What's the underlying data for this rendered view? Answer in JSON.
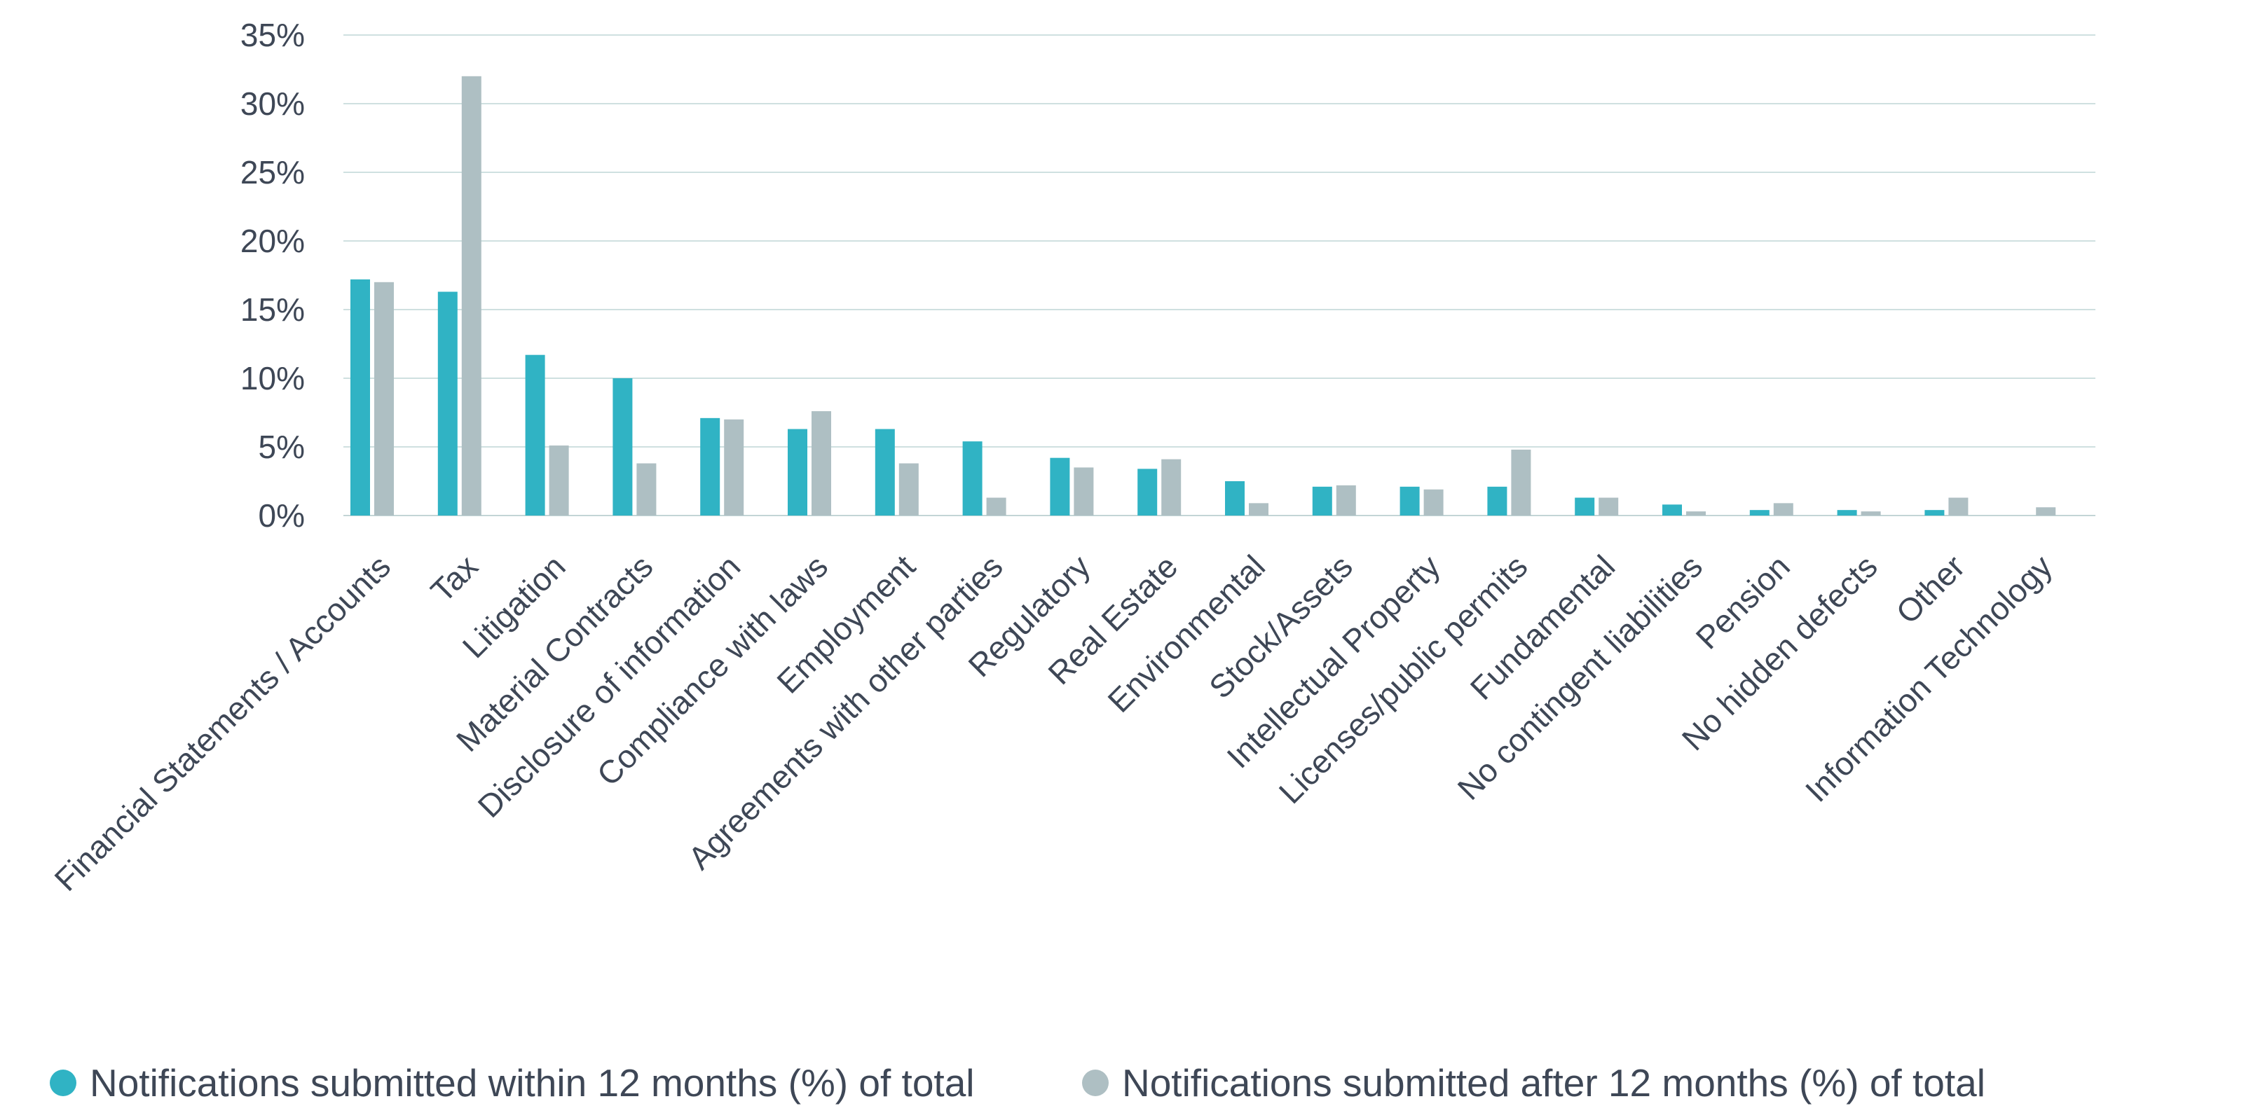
{
  "chart_data": {
    "type": "bar",
    "categories": [
      "Financial Statements / Accounts",
      "Tax",
      "Litigation",
      "Material Contracts",
      "Disclosure of information",
      "Compliance with laws",
      "Employment",
      "Agreements with other parties",
      "Regulatory",
      "Real Estate",
      "Environmental",
      "Stock/Assets",
      "Intellectual Property",
      "Licenses/public permits",
      "Fundamental",
      "No contingent liabilities",
      "Pension",
      "No hidden defects",
      "Other",
      "Information Technology"
    ],
    "series": [
      {
        "name": "Notifications submitted within 12 months (%) of total",
        "color": "#30b3c4",
        "values": [
          17.2,
          16.3,
          11.7,
          10.0,
          7.1,
          6.3,
          6.3,
          5.4,
          4.2,
          3.4,
          2.5,
          2.1,
          2.1,
          2.1,
          1.3,
          0.8,
          0.4,
          0.4,
          0.4,
          0
        ]
      },
      {
        "name": "Notifications submitted after 12 months (%) of total",
        "color": "#aebfc3",
        "values": [
          17.0,
          32.0,
          5.1,
          3.8,
          7.0,
          7.6,
          3.8,
          1.3,
          3.5,
          4.1,
          0.9,
          2.2,
          1.9,
          4.8,
          1.3,
          0.3,
          0.9,
          0.3,
          1.3,
          0.6
        ]
      }
    ],
    "yticks": [
      "0%",
      "5%",
      "10%",
      "15%",
      "20%",
      "25%",
      "30%",
      "35%"
    ],
    "ylim": [
      0,
      35
    ],
    "grid": true,
    "legend_position": "bottom",
    "title": "",
    "xlabel": "",
    "ylabel": ""
  }
}
